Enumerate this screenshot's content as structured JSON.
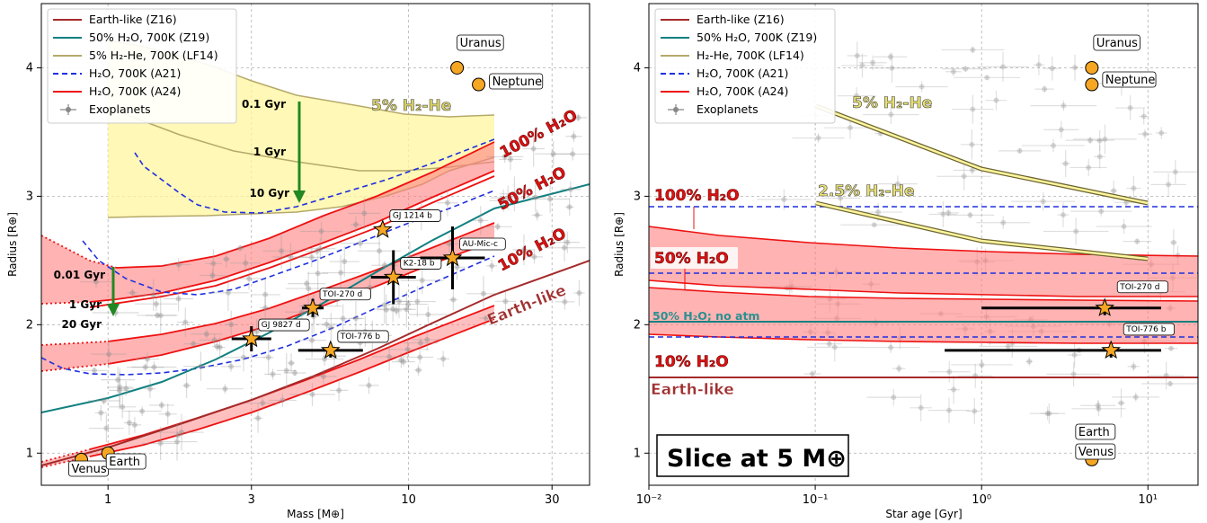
{
  "chart_data": [
    {
      "type": "scatter",
      "panel": "mass-radius",
      "xlabel": "Mass [M⊕]",
      "ylabel": "Radius [R⊕]",
      "xscale": "log",
      "xlim": [
        0.6,
        40
      ],
      "ylim": [
        0.75,
        4.5
      ],
      "xticks": [
        {
          "v": 1,
          "label": "1"
        },
        {
          "v": 3,
          "label": "3"
        },
        {
          "v": 10,
          "label": "10"
        },
        {
          "v": 30,
          "label": "30"
        }
      ],
      "yticks": [
        1,
        2,
        3,
        4
      ],
      "grid": true,
      "legend_placement": "top-left",
      "legend": [
        {
          "label": "Earth-like (Z16)",
          "color": "#a52a2a",
          "style": "solid"
        },
        {
          "label": "50% H₂O, 700K (Z19)",
          "color": "#118080",
          "style": "solid"
        },
        {
          "label": "5% H₂-He, 700K (LF14)",
          "color": "#b5a96a",
          "style": "solid"
        },
        {
          "label": "H₂O, 700K (A21)",
          "color": "#1f2fe0",
          "style": "dashed"
        },
        {
          "label": "H₂O, 700K (A24)",
          "color": "#ee1111",
          "style": "solid"
        },
        {
          "label": "Exoplanets",
          "color": "#888888",
          "style": "marker"
        }
      ],
      "series": [
        {
          "name": "Earth-like (Z16)",
          "color": "#a52a2a",
          "x": [
            0.6,
            1,
            2,
            3,
            5,
            10,
            20
          ],
          "y": [
            0.85,
            1.0,
            1.21,
            1.34,
            1.52,
            1.8,
            2.46
          ]
        },
        {
          "name": "50% H₂O, 700K (Z19)",
          "color": "#118080",
          "x": [
            0.6,
            1,
            2,
            3,
            5,
            10,
            20,
            40
          ],
          "y": [
            1.27,
            1.38,
            1.58,
            1.72,
            1.98,
            2.35,
            2.75,
            3.1
          ]
        },
        {
          "name": "5% H₂-He, 700K (LF14)",
          "color": "#b5a96a",
          "x": [
            0.9,
            2,
            3,
            5,
            10,
            20
          ],
          "y": [
            4.45,
            4.0,
            3.65,
            3.6,
            3.7,
            3.63
          ]
        },
        {
          "name": "H₂O, 700K (A21)",
          "color": "#1f2fe0",
          "x": [
            0.9,
            1.5,
            2,
            3,
            5,
            10,
            20
          ],
          "y": [
            2.6,
            2.3,
            2.25,
            2.28,
            2.4,
            2.62,
            2.87
          ]
        }
      ],
      "annotations": {
        "age_arrow_hhe": [
          "0.1 Gyr",
          "1 Gyr",
          "10 Gyr"
        ],
        "age_arrow_water": [
          "0.01 Gyr",
          "1 Gyr",
          "20 Gyr"
        ],
        "composition_labels": [
          "5% H₂-He",
          "100% H₂O",
          "50% H₂O",
          "10% H₂O",
          "Earth-like"
        ]
      },
      "solar_system": [
        {
          "name": "Venus",
          "mass": 0.815,
          "radius": 0.95
        },
        {
          "name": "Earth",
          "mass": 1.0,
          "radius": 1.0
        },
        {
          "name": "Uranus",
          "mass": 14.5,
          "radius": 4.0
        },
        {
          "name": "Neptune",
          "mass": 17.1,
          "radius": 3.87
        }
      ],
      "highlighted_planets": [
        {
          "name": "GJ 9827 d",
          "mass": 3.0,
          "radius": 1.89
        },
        {
          "name": "TOI-270 d",
          "mass": 4.8,
          "radius": 2.13
        },
        {
          "name": "TOI-776 b",
          "mass": 5.5,
          "radius": 1.8
        },
        {
          "name": "GJ 1214 b",
          "mass": 8.2,
          "radius": 2.74
        },
        {
          "name": "K2-18 b",
          "mass": 8.9,
          "radius": 2.37
        },
        {
          "name": "AU-Mic-c",
          "mass": 14.0,
          "radius": 2.52
        }
      ]
    },
    {
      "type": "line",
      "panel": "age-radius",
      "xlabel": "Star age [Gyr]",
      "ylabel": "Radius [R⊕]",
      "xscale": "log",
      "xlim": [
        0.01,
        20
      ],
      "ylim": [
        0.75,
        4.5
      ],
      "xticks": [
        {
          "v": 0.01,
          "label": "10⁻²"
        },
        {
          "v": 0.1,
          "label": "10⁻¹"
        },
        {
          "v": 1,
          "label": "10⁰"
        },
        {
          "v": 10,
          "label": "10¹"
        }
      ],
      "yticks": [
        1,
        2,
        3,
        4
      ],
      "grid": true,
      "legend_placement": "top-left",
      "legend": [
        {
          "label": "Earth-like (Z16)",
          "color": "#a52a2a",
          "style": "solid"
        },
        {
          "label": "50% H₂O, 700K (Z19)",
          "color": "#118080",
          "style": "solid"
        },
        {
          "label": "H₂-He, 700K (LF14)",
          "color": "#b5a96a",
          "style": "solid"
        },
        {
          "label": "H₂O, 700K (A21)",
          "color": "#1f2fe0",
          "style": "dashed"
        },
        {
          "label": "H₂O, 700K (A24)",
          "color": "#ee1111",
          "style": "solid"
        },
        {
          "label": "Exoplanets",
          "color": "#888888",
          "style": "marker"
        }
      ],
      "series": [
        {
          "name": "Earth-like (Z16)",
          "color": "#a52a2a",
          "x": [
            0.01,
            20
          ],
          "y": [
            1.55,
            1.55
          ]
        },
        {
          "name": "50% H₂O, 700K (Z19)",
          "color": "#118080",
          "x": [
            0.01,
            20
          ],
          "y": [
            1.98,
            1.98
          ]
        },
        {
          "name": "5% H₂-He",
          "color": "#b5a96a",
          "x": [
            0.1,
            1,
            10
          ],
          "y": [
            3.7,
            3.18,
            2.93
          ]
        },
        {
          "name": "2.5% H₂-He",
          "color": "#b5a96a",
          "x": [
            0.1,
            1,
            10
          ],
          "y": [
            2.93,
            2.62,
            2.48
          ]
        },
        {
          "name": "100% H₂O (A21)",
          "color": "#1f2fe0",
          "x": [
            0.01,
            20
          ],
          "y": [
            2.89,
            2.89
          ]
        },
        {
          "name": "50% H₂O (A21)",
          "color": "#1f2fe0",
          "x": [
            0.01,
            20
          ],
          "y": [
            2.36,
            2.36
          ]
        },
        {
          "name": "10% H₂O (A21)",
          "color": "#1f2fe0",
          "x": [
            0.01,
            20
          ],
          "y": [
            1.87,
            1.87
          ]
        }
      ],
      "highlighted_planets": [
        {
          "name": "TOI-270 d",
          "age": 5.5,
          "radius": 2.13
        },
        {
          "name": "TOI-776 b",
          "age": 6.0,
          "radius": 1.8
        }
      ],
      "solar_system": [
        {
          "name": "Uranus",
          "age": 4.6,
          "radius": 4.0
        },
        {
          "name": "Neptune",
          "age": 4.6,
          "radius": 3.87
        },
        {
          "name": "Earth",
          "age": 4.6,
          "radius": 1.0
        },
        {
          "name": "Venus",
          "age": 4.6,
          "radius": 0.95
        }
      ],
      "composition_labels": [
        "5% H₂-He",
        "2.5% H₂-He",
        "100% H₂O",
        "50% H₂O",
        "50% H₂O; no atm",
        "10% H₂O",
        "Earth-like"
      ],
      "slice_label": "Slice at 5 M⊕"
    }
  ]
}
